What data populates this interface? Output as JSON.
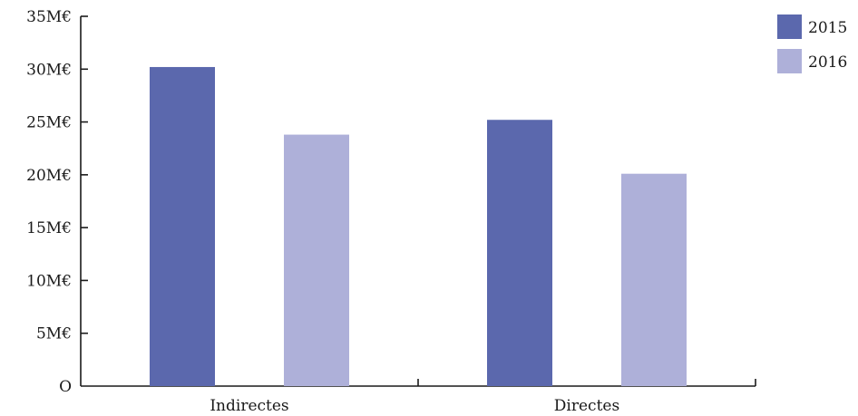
{
  "chart_data": {
    "type": "bar",
    "categories": [
      "Indirectes",
      "Directes"
    ],
    "series": [
      {
        "name": "2015",
        "color": "#5b68ad",
        "values": [
          30.2,
          25.2
        ]
      },
      {
        "name": "2016",
        "color": "#aeb0d9",
        "values": [
          23.8,
          20.1
        ]
      }
    ],
    "yticks": [
      "O",
      "5M€",
      "10M€",
      "15M€",
      "20M€",
      "25M€",
      "30M€",
      "35M€"
    ],
    "ylim": [
      0,
      35
    ],
    "unit": "M€",
    "title": "",
    "xlabel": "",
    "ylabel": "",
    "grid": false,
    "legend_position": "top-right"
  }
}
